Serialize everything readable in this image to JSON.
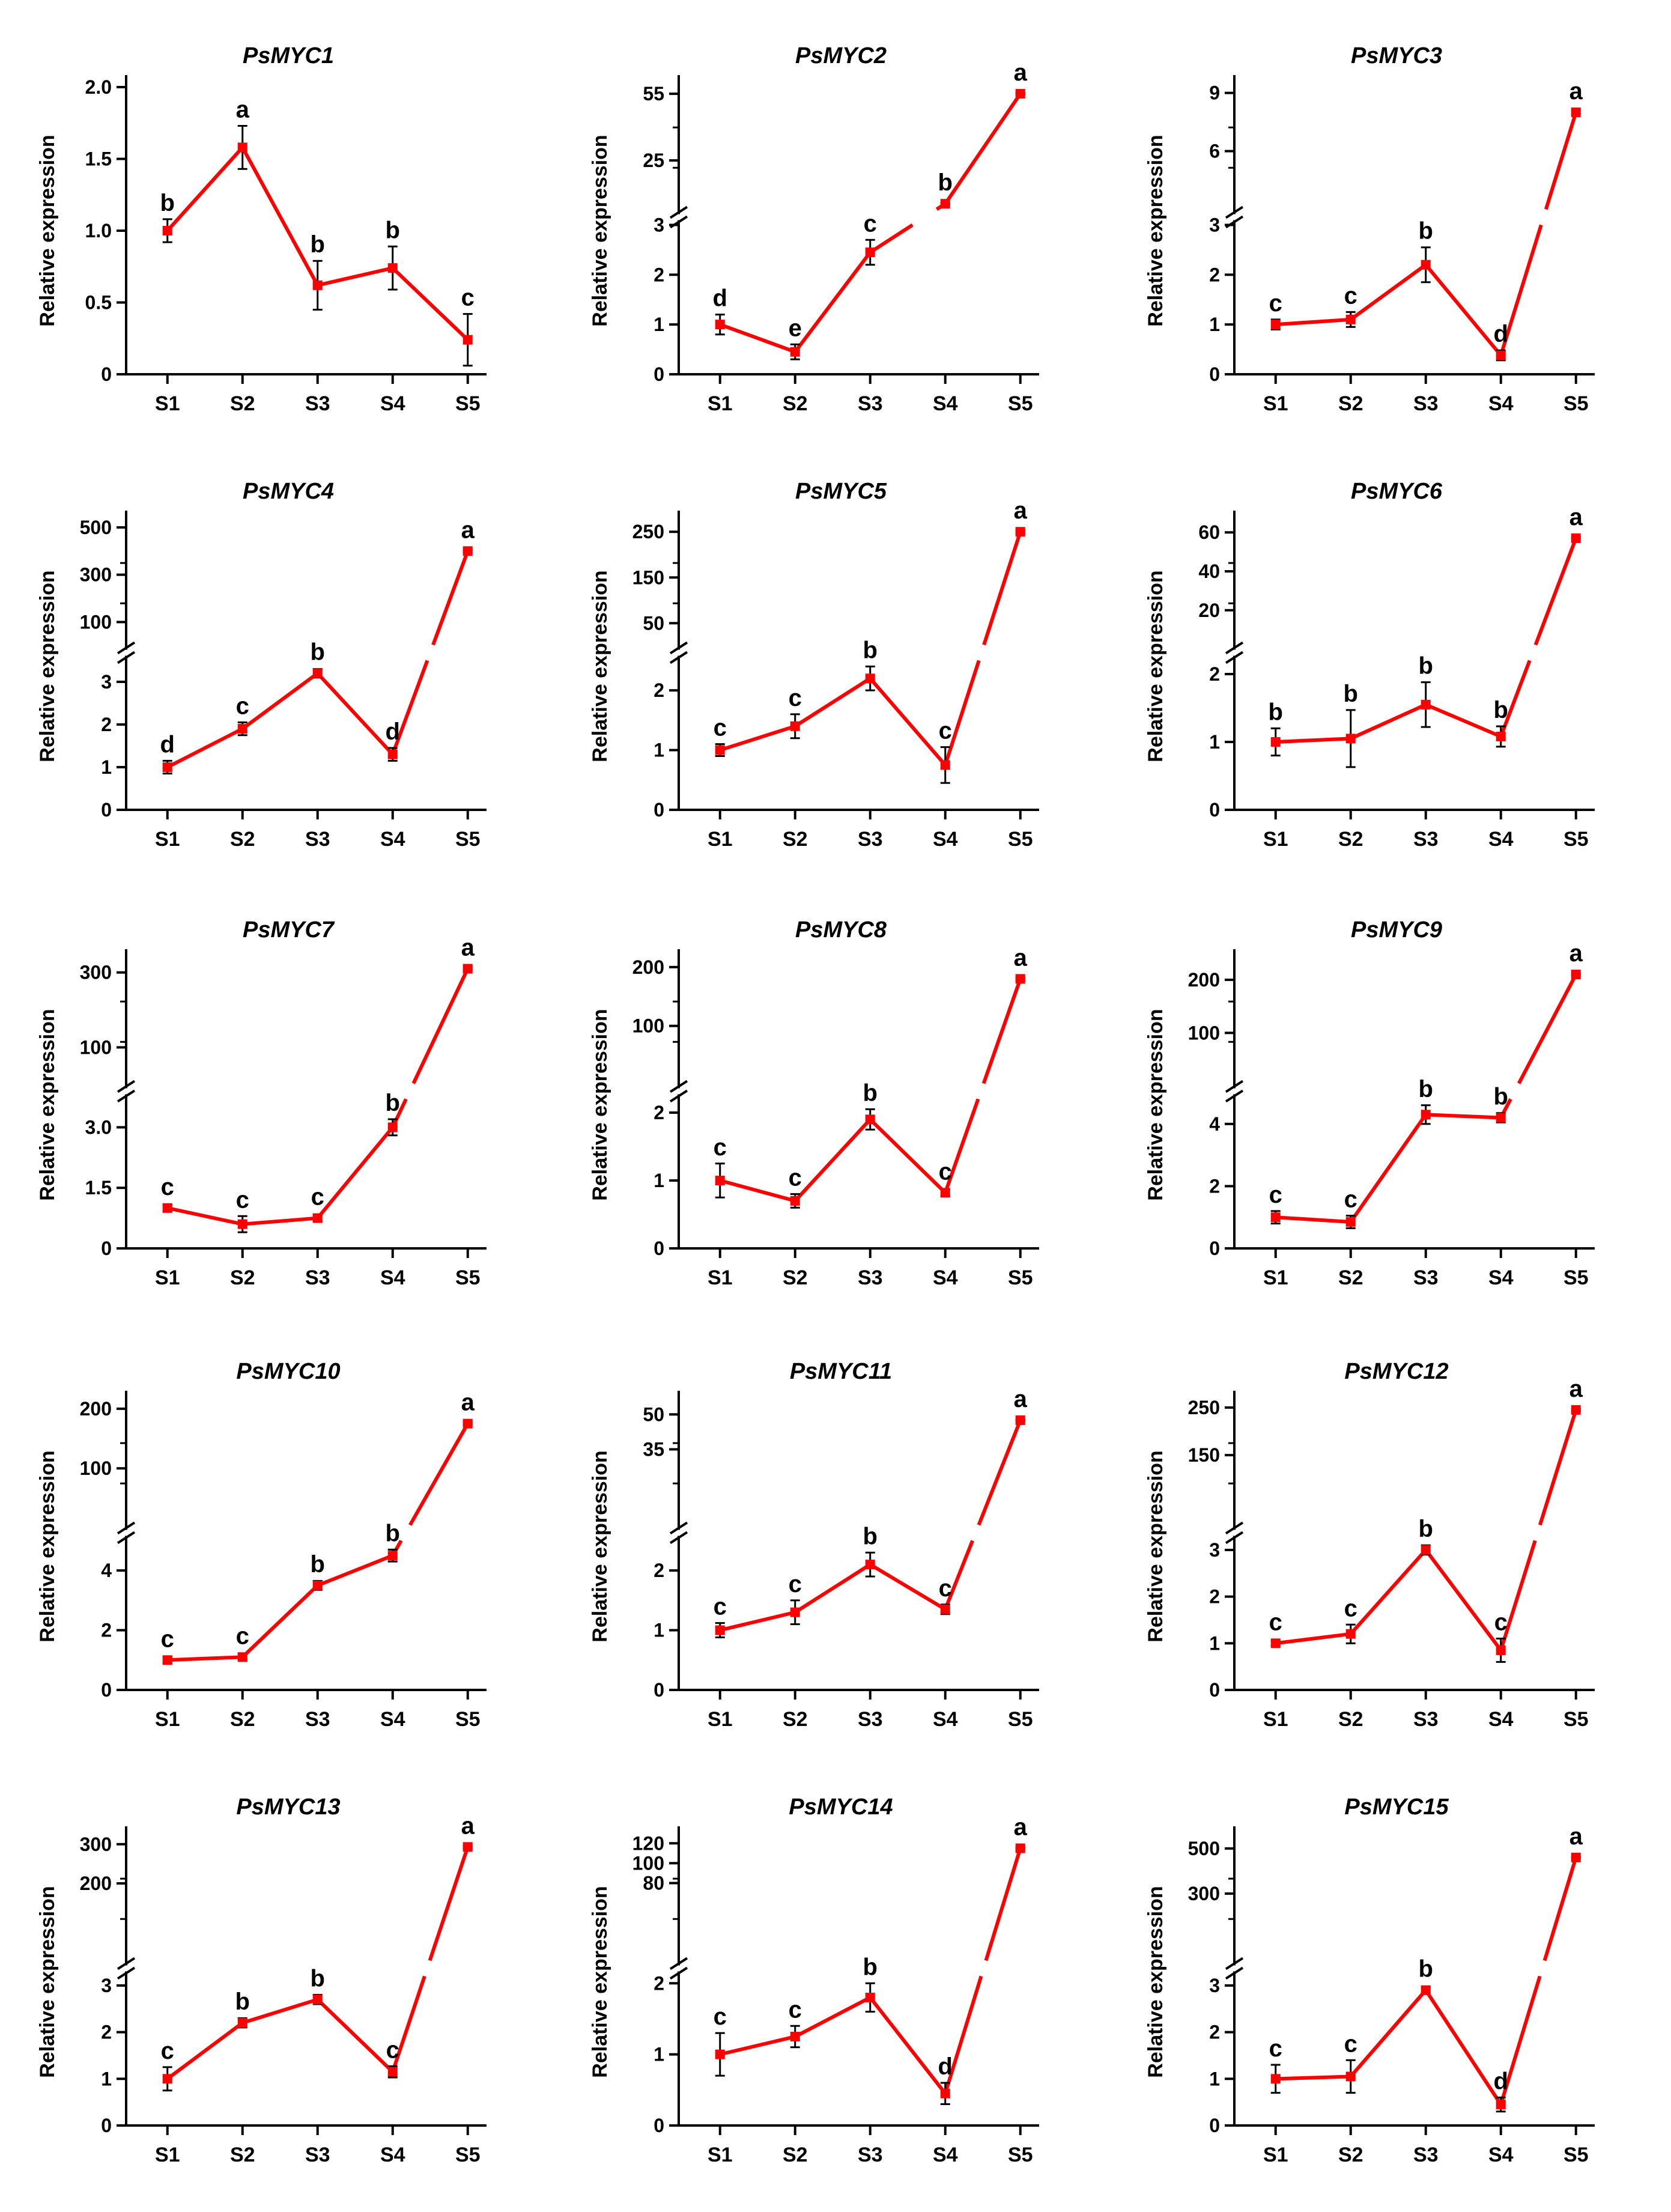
{
  "chart_data": [
    {
      "type": "line",
      "title": "PsMYC1",
      "categories": [
        "S1",
        "S2",
        "S3",
        "S4",
        "S5"
      ],
      "ylabel": "Relative expression",
      "values": [
        1.0,
        1.58,
        0.62,
        0.74,
        0.24
      ],
      "errors": [
        0.08,
        0.15,
        0.17,
        0.15,
        0.18
      ],
      "letters": [
        "b",
        "a",
        "b",
        "b",
        "c"
      ],
      "axis": {
        "type": "linear",
        "ylim": [
          0,
          2.0
        ],
        "ticks": [
          "0",
          "0.5",
          "1.0",
          "1.5",
          "2.0"
        ]
      }
    },
    {
      "type": "line",
      "title": "PsMYC2",
      "categories": [
        "S1",
        "S2",
        "S3",
        "S4",
        "S5"
      ],
      "ylabel": "Relative expression",
      "values": [
        1.0,
        0.45,
        2.45,
        5.5,
        55.0
      ],
      "errors": [
        0.2,
        0.15,
        0.25,
        0.3,
        0.4
      ],
      "letters": [
        "d",
        "e",
        "c",
        "b",
        "a"
      ],
      "axis": {
        "type": "broken",
        "lower": [
          0,
          3
        ],
        "upper": [
          3,
          58
        ],
        "lowerTicks": [
          "0",
          "1",
          "2",
          "3"
        ],
        "upperTicks": [
          "25",
          "55"
        ]
      }
    },
    {
      "type": "line",
      "title": "PsMYC3",
      "categories": [
        "S1",
        "S2",
        "S3",
        "S4",
        "S5"
      ],
      "ylabel": "Relative expression",
      "values": [
        1.0,
        1.1,
        2.2,
        0.38,
        8.0
      ],
      "errors": [
        0.1,
        0.15,
        0.35,
        0.1,
        0.1
      ],
      "letters": [
        "c",
        "c",
        "b",
        "d",
        "a"
      ],
      "axis": {
        "type": "broken",
        "lower": [
          0,
          3
        ],
        "upper": [
          3,
          9.3
        ],
        "lowerTicks": [
          "0",
          "1",
          "2",
          "3"
        ],
        "upperTicks": [
          "6",
          "9"
        ]
      }
    },
    {
      "type": "line",
      "title": "PsMYC4",
      "categories": [
        "S1",
        "S2",
        "S3",
        "S4",
        "S5"
      ],
      "ylabel": "Relative expression",
      "values": [
        1.0,
        1.9,
        3.2,
        1.3,
        400
      ],
      "errors": [
        0.15,
        0.15,
        0.1,
        0.15,
        5
      ],
      "letters": [
        "d",
        "c",
        "b",
        "d",
        "a"
      ],
      "axis": {
        "type": "broken",
        "lower": [
          0,
          3.5
        ],
        "upper": [
          3.5,
          520
        ],
        "lowerTicks": [
          "0",
          "1",
          "2",
          "3"
        ],
        "upperTicks": [
          "100",
          "300",
          "500"
        ]
      }
    },
    {
      "type": "line",
      "title": "PsMYC5",
      "categories": [
        "S1",
        "S2",
        "S3",
        "S4",
        "S5"
      ],
      "ylabel": "Relative expression",
      "values": [
        1.0,
        1.4,
        2.2,
        0.75,
        250
      ],
      "errors": [
        0.1,
        0.2,
        0.2,
        0.3,
        3
      ],
      "letters": [
        "c",
        "c",
        "b",
        "c",
        "a"
      ],
      "axis": {
        "type": "broken",
        "lower": [
          0,
          2.5
        ],
        "upper": [
          2.5,
          270
        ],
        "lowerTicks": [
          "0",
          "1",
          "2"
        ],
        "upperTicks": [
          "50",
          "150",
          "250"
        ]
      }
    },
    {
      "type": "line",
      "title": "PsMYC6",
      "categories": [
        "S1",
        "S2",
        "S3",
        "S4",
        "S5"
      ],
      "ylabel": "Relative expression",
      "values": [
        1.0,
        1.05,
        1.55,
        1.08,
        57
      ],
      "errors": [
        0.2,
        0.42,
        0.33,
        0.15,
        0.5
      ],
      "letters": [
        "b",
        "b",
        "b",
        "b",
        "a"
      ],
      "axis": {
        "type": "broken",
        "lower": [
          0,
          2.2
        ],
        "upper": [
          2.2,
          65
        ],
        "lowerTicks": [
          "0",
          "1",
          "2"
        ],
        "upperTicks": [
          "20",
          "40",
          "60"
        ]
      }
    },
    {
      "type": "line",
      "title": "PsMYC7",
      "categories": [
        "S1",
        "S2",
        "S3",
        "S4",
        "S5"
      ],
      "ylabel": "Relative expression",
      "values": [
        1.0,
        0.6,
        0.75,
        3.0,
        310
      ],
      "errors": [
        0.08,
        0.2,
        0.08,
        0.2,
        3
      ],
      "letters": [
        "c",
        "c",
        "c",
        "b",
        "a"
      ],
      "axis": {
        "type": "broken",
        "lower": [
          0,
          3.7
        ],
        "upper": [
          3.7,
          330
        ],
        "lowerTicks": [
          "0",
          "1.5",
          "3.0"
        ],
        "upperTicks": [
          "100",
          "300"
        ]
      }
    },
    {
      "type": "line",
      "title": "PsMYC8",
      "categories": [
        "S1",
        "S2",
        "S3",
        "S4",
        "S5"
      ],
      "ylabel": "Relative expression",
      "values": [
        1.0,
        0.7,
        1.9,
        0.82,
        180
      ],
      "errors": [
        0.25,
        0.1,
        0.15,
        0.05,
        2
      ],
      "letters": [
        "c",
        "c",
        "b",
        "c",
        "a"
      ],
      "axis": {
        "type": "broken",
        "lower": [
          0,
          2.2
        ],
        "upper": [
          2.2,
          210
        ],
        "lowerTicks": [
          "0",
          "1",
          "2"
        ],
        "upperTicks": [
          "100",
          "200"
        ]
      }
    },
    {
      "type": "line",
      "title": "PsMYC9",
      "categories": [
        "S1",
        "S2",
        "S3",
        "S4",
        "S5"
      ],
      "ylabel": "Relative expression",
      "values": [
        1.0,
        0.85,
        4.3,
        4.2,
        210
      ],
      "errors": [
        0.2,
        0.2,
        0.3,
        0.15,
        2
      ],
      "letters": [
        "c",
        "c",
        "b",
        "b",
        "a"
      ],
      "axis": {
        "type": "broken",
        "lower": [
          0,
          4.8
        ],
        "upper": [
          4.8,
          235
        ],
        "lowerTicks": [
          "0",
          "2",
          "4"
        ],
        "upperTicks": [
          "100",
          "200"
        ]
      }
    },
    {
      "type": "line",
      "title": "PsMYC10",
      "categories": [
        "S1",
        "S2",
        "S3",
        "S4",
        "S5"
      ],
      "ylabel": "Relative expression",
      "values": [
        1.0,
        1.1,
        3.5,
        4.5,
        175
      ],
      "errors": [
        0.1,
        0.1,
        0.15,
        0.2,
        2
      ],
      "letters": [
        "c",
        "c",
        "b",
        "b",
        "a"
      ],
      "axis": {
        "type": "broken",
        "lower": [
          0,
          5
        ],
        "upper": [
          5,
          210
        ],
        "lowerTicks": [
          "0",
          "2",
          "4"
        ],
        "upperTicks": [
          "100",
          "200"
        ]
      }
    },
    {
      "type": "line",
      "title": "PsMYC11",
      "categories": [
        "S1",
        "S2",
        "S3",
        "S4",
        "S5"
      ],
      "ylabel": "Relative expression",
      "values": [
        1.0,
        1.3,
        2.1,
        1.35,
        47.5
      ],
      "errors": [
        0.12,
        0.2,
        0.2,
        0.08,
        0.3
      ],
      "letters": [
        "c",
        "c",
        "b",
        "c",
        "a"
      ],
      "axis": {
        "type": "broken",
        "lower": [
          0,
          2.5
        ],
        "upper": [
          2.5,
          55
        ],
        "lowerTicks": [
          "0",
          "1",
          "2"
        ],
        "upperTicks": [
          "35",
          "50"
        ]
      }
    },
    {
      "type": "line",
      "title": "PsMYC12",
      "categories": [
        "S1",
        "S2",
        "S3",
        "S4",
        "S5"
      ],
      "ylabel": "Relative expression",
      "values": [
        1.0,
        1.2,
        3.0,
        0.85,
        245
      ],
      "errors": [
        0.05,
        0.2,
        0.1,
        0.25,
        2
      ],
      "letters": [
        "c",
        "c",
        "b",
        "c",
        "a"
      ],
      "axis": {
        "type": "broken",
        "lower": [
          0,
          3.2
        ],
        "upper": [
          3.2,
          260
        ],
        "lowerTicks": [
          "0",
          "1",
          "2",
          "3"
        ],
        "upperTicks": [
          "150",
          "250"
        ]
      }
    },
    {
      "type": "line",
      "title": "PsMYC13",
      "categories": [
        "S1",
        "S2",
        "S3",
        "S4",
        "S5"
      ],
      "ylabel": "Relative expression",
      "values": [
        1.0,
        2.2,
        2.7,
        1.15,
        293
      ],
      "errors": [
        0.25,
        0.1,
        0.1,
        0.12,
        3
      ],
      "letters": [
        "c",
        "b",
        "b",
        "c",
        "a"
      ],
      "axis": {
        "type": "broken",
        "lower": [
          0,
          3.2
        ],
        "upper": [
          3.2,
          315
        ],
        "lowerTicks": [
          "0",
          "1",
          "2",
          "3"
        ],
        "upperTicks": [
          "200",
          "300"
        ]
      }
    },
    {
      "type": "line",
      "title": "PsMYC14",
      "categories": [
        "S1",
        "S2",
        "S3",
        "S4",
        "S5"
      ],
      "ylabel": "Relative expression",
      "values": [
        1.0,
        1.25,
        1.8,
        0.45,
        115
      ],
      "errors": [
        0.3,
        0.15,
        0.2,
        0.15,
        1
      ],
      "letters": [
        "c",
        "c",
        "b",
        "d",
        "a"
      ],
      "axis": {
        "type": "broken",
        "lower": [
          0,
          2.1
        ],
        "upper": [
          2.1,
          125
        ],
        "lowerTicks": [
          "0",
          "1",
          "2"
        ],
        "upperTicks": [
          "80",
          "100",
          "120"
        ]
      }
    },
    {
      "type": "line",
      "title": "PsMYC15",
      "categories": [
        "S1",
        "S2",
        "S3",
        "S4",
        "S5"
      ],
      "ylabel": "Relative expression",
      "values": [
        1.0,
        1.05,
        2.9,
        0.45,
        460
      ],
      "errors": [
        0.3,
        0.35,
        0.05,
        0.15,
        3
      ],
      "letters": [
        "c",
        "c",
        "b",
        "d",
        "a"
      ],
      "axis": {
        "type": "broken",
        "lower": [
          0,
          3.2
        ],
        "upper": [
          3.2,
          545
        ],
        "lowerTicks": [
          "0",
          "1",
          "2",
          "3"
        ],
        "upperTicks": [
          "300",
          "500"
        ]
      }
    }
  ],
  "style": {
    "line_color": "#ff0000",
    "axis_color": "#000000"
  }
}
